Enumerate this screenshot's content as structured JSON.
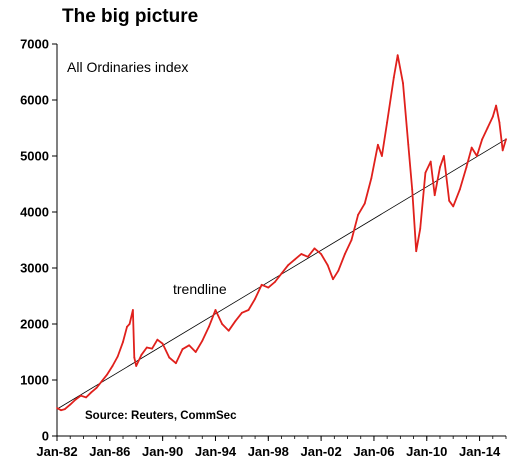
{
  "chart_data": {
    "type": "line",
    "title": "The big picture",
    "series_label": "All Ordinaries index",
    "trendline_label": "trendline",
    "source": "Source: Reuters, CommSec",
    "ylim": [
      0,
      7000
    ],
    "yticks": [
      "0",
      "1000",
      "2000",
      "3000",
      "4000",
      "5000",
      "6000",
      "7000"
    ],
    "xlim": [
      1982.0,
      2016.0
    ],
    "xticks": [
      {
        "label": "Jan-82",
        "x": 1982.0
      },
      {
        "label": "Jan-86",
        "x": 1986.0
      },
      {
        "label": "Jan-90",
        "x": 1990.0
      },
      {
        "label": "Jan-94",
        "x": 1994.0
      },
      {
        "label": "Jan-98",
        "x": 1998.0
      },
      {
        "label": "Jan-02",
        "x": 2002.0
      },
      {
        "label": "Jan-06",
        "x": 2006.0
      },
      {
        "label": "Jan-10",
        "x": 2010.0
      },
      {
        "label": "Jan-14",
        "x": 2014.0
      }
    ],
    "series": [
      {
        "color": "#e0201c",
        "points": [
          [
            1982.0,
            500
          ],
          [
            1982.3,
            460
          ],
          [
            1982.6,
            480
          ],
          [
            1983.0,
            560
          ],
          [
            1983.4,
            650
          ],
          [
            1983.8,
            720
          ],
          [
            1984.2,
            690
          ],
          [
            1984.6,
            780
          ],
          [
            1985.0,
            860
          ],
          [
            1985.4,
            980
          ],
          [
            1985.8,
            1100
          ],
          [
            1986.2,
            1250
          ],
          [
            1986.6,
            1420
          ],
          [
            1987.0,
            1680
          ],
          [
            1987.3,
            1950
          ],
          [
            1987.5,
            2000
          ],
          [
            1987.75,
            2250
          ],
          [
            1987.85,
            1400
          ],
          [
            1988.0,
            1250
          ],
          [
            1988.4,
            1450
          ],
          [
            1988.8,
            1580
          ],
          [
            1989.2,
            1560
          ],
          [
            1989.6,
            1720
          ],
          [
            1990.0,
            1650
          ],
          [
            1990.5,
            1400
          ],
          [
            1991.0,
            1300
          ],
          [
            1991.5,
            1550
          ],
          [
            1992.0,
            1620
          ],
          [
            1992.5,
            1500
          ],
          [
            1993.0,
            1700
          ],
          [
            1993.5,
            1950
          ],
          [
            1994.0,
            2250
          ],
          [
            1994.5,
            2000
          ],
          [
            1995.0,
            1880
          ],
          [
            1995.5,
            2050
          ],
          [
            1996.0,
            2200
          ],
          [
            1996.5,
            2250
          ],
          [
            1997.0,
            2450
          ],
          [
            1997.5,
            2700
          ],
          [
            1998.0,
            2650
          ],
          [
            1998.5,
            2750
          ],
          [
            1999.0,
            2900
          ],
          [
            1999.5,
            3050
          ],
          [
            2000.0,
            3150
          ],
          [
            2000.5,
            3250
          ],
          [
            2001.0,
            3200
          ],
          [
            2001.5,
            3350
          ],
          [
            2002.0,
            3250
          ],
          [
            2002.5,
            3050
          ],
          [
            2002.9,
            2800
          ],
          [
            2003.3,
            2950
          ],
          [
            2003.8,
            3250
          ],
          [
            2004.3,
            3500
          ],
          [
            2004.8,
            3950
          ],
          [
            2005.3,
            4150
          ],
          [
            2005.8,
            4600
          ],
          [
            2006.3,
            5200
          ],
          [
            2006.6,
            5000
          ],
          [
            2007.0,
            5600
          ],
          [
            2007.5,
            6400
          ],
          [
            2007.8,
            6800
          ],
          [
            2008.2,
            6300
          ],
          [
            2008.6,
            5200
          ],
          [
            2008.9,
            4400
          ],
          [
            2009.2,
            3300
          ],
          [
            2009.5,
            3700
          ],
          [
            2009.9,
            4700
          ],
          [
            2010.3,
            4900
          ],
          [
            2010.6,
            4300
          ],
          [
            2011.0,
            4800
          ],
          [
            2011.3,
            5000
          ],
          [
            2011.7,
            4200
          ],
          [
            2012.0,
            4100
          ],
          [
            2012.5,
            4400
          ],
          [
            2013.0,
            4800
          ],
          [
            2013.4,
            5150
          ],
          [
            2013.8,
            5000
          ],
          [
            2014.2,
            5300
          ],
          [
            2014.6,
            5500
          ],
          [
            2015.0,
            5700
          ],
          [
            2015.25,
            5900
          ],
          [
            2015.5,
            5600
          ],
          [
            2015.75,
            5100
          ],
          [
            2016.0,
            5300
          ]
        ]
      }
    ],
    "trendline": {
      "color": "#000000",
      "points": [
        [
          1982.0,
          480
        ],
        [
          2016.0,
          5300
        ]
      ]
    }
  }
}
